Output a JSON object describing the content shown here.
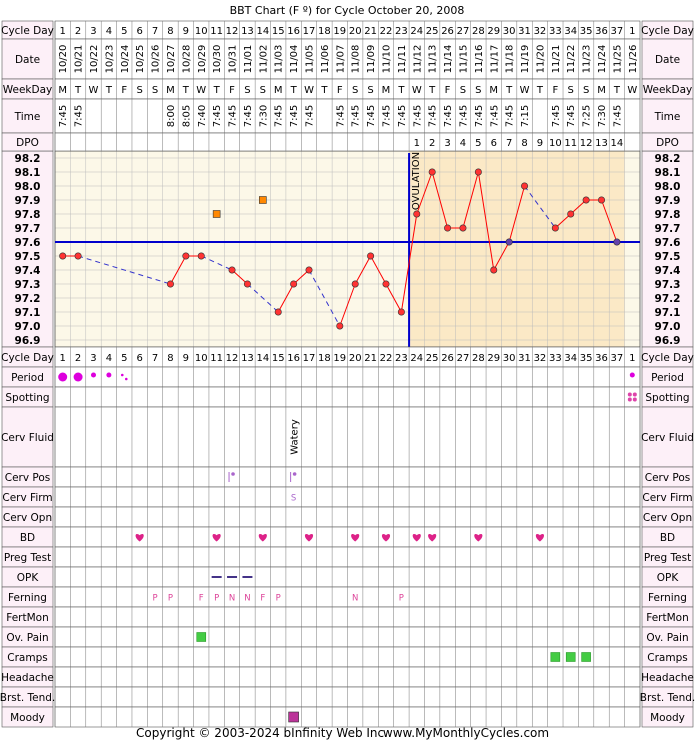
{
  "title": "BBT Chart (F º) for Cycle October 20, 2008",
  "footer": {
    "copyright": "Copyright © 2003-2024 bInfinity Web Inc.",
    "site": "www.MyMonthlyCycles.com"
  },
  "row_labels": {
    "cycle_day": "Cycle Day",
    "date": "Date",
    "weekday": "WeekDay",
    "time": "Time",
    "dpo": "DPO"
  },
  "ovulation_label": "OVULATION",
  "colors": {
    "pre_ovulation_bg": "#fcf8e8",
    "post_ovulation_bg": "#fbe9c6",
    "temp_line": "#ff0000",
    "temp_point": "#ff3333",
    "gap_line": "#3333cc",
    "coverline": "#0000cc",
    "ovulation_line": "#0000cc",
    "period": "#dd00dd",
    "spotting": "#dd44aa",
    "heart": "#dd2288",
    "opk": "#443388",
    "ferning": "#dd4499",
    "pain": "#44cc44",
    "cramps": "#44cc44",
    "moody": "#bb3399",
    "cervpos": "#aa66cc",
    "cervfirm": "#aa66cc",
    "special_point": "#ff8800",
    "label_bg": "#fdf0f8"
  },
  "days": [
    {
      "cd": "1",
      "date": "10/20",
      "wd": "M",
      "time": "7:45",
      "dpo": ""
    },
    {
      "cd": "2",
      "date": "10/21",
      "wd": "T",
      "time": "7:45",
      "dpo": ""
    },
    {
      "cd": "3",
      "date": "10/22",
      "wd": "W",
      "time": "",
      "dpo": ""
    },
    {
      "cd": "4",
      "date": "10/23",
      "wd": "T",
      "time": "",
      "dpo": ""
    },
    {
      "cd": "5",
      "date": "10/24",
      "wd": "F",
      "time": "",
      "dpo": ""
    },
    {
      "cd": "6",
      "date": "10/25",
      "wd": "S",
      "time": "",
      "dpo": ""
    },
    {
      "cd": "7",
      "date": "10/26",
      "wd": "S",
      "time": "",
      "dpo": ""
    },
    {
      "cd": "8",
      "date": "10/27",
      "wd": "M",
      "time": "8:00",
      "dpo": ""
    },
    {
      "cd": "9",
      "date": "10/28",
      "wd": "T",
      "time": "8:05",
      "dpo": ""
    },
    {
      "cd": "10",
      "date": "10/29",
      "wd": "W",
      "time": "7:40",
      "dpo": ""
    },
    {
      "cd": "11",
      "date": "10/30",
      "wd": "T",
      "time": "7:45",
      "dpo": ""
    },
    {
      "cd": "12",
      "date": "10/31",
      "wd": "F",
      "time": "7:45",
      "dpo": ""
    },
    {
      "cd": "13",
      "date": "11/01",
      "wd": "S",
      "time": "7:45",
      "dpo": ""
    },
    {
      "cd": "14",
      "date": "11/02",
      "wd": "S",
      "time": "7:30",
      "dpo": ""
    },
    {
      "cd": "15",
      "date": "11/03",
      "wd": "M",
      "time": "7:45",
      "dpo": ""
    },
    {
      "cd": "16",
      "date": "11/04",
      "wd": "T",
      "time": "7:45",
      "dpo": ""
    },
    {
      "cd": "17",
      "date": "11/05",
      "wd": "W",
      "time": "7:45",
      "dpo": ""
    },
    {
      "cd": "18",
      "date": "11/06",
      "wd": "T",
      "time": "",
      "dpo": ""
    },
    {
      "cd": "19",
      "date": "11/07",
      "wd": "F",
      "time": "7:45",
      "dpo": ""
    },
    {
      "cd": "20",
      "date": "11/08",
      "wd": "S",
      "time": "7:45",
      "dpo": ""
    },
    {
      "cd": "21",
      "date": "11/09",
      "wd": "S",
      "time": "7:45",
      "dpo": ""
    },
    {
      "cd": "22",
      "date": "11/10",
      "wd": "M",
      "time": "7:45",
      "dpo": ""
    },
    {
      "cd": "23",
      "date": "11/11",
      "wd": "T",
      "time": "7:45",
      "dpo": ""
    },
    {
      "cd": "24",
      "date": "11/12",
      "wd": "W",
      "time": "7:45",
      "dpo": "1"
    },
    {
      "cd": "25",
      "date": "11/13",
      "wd": "T",
      "time": "7:45",
      "dpo": "2"
    },
    {
      "cd": "26",
      "date": "11/14",
      "wd": "F",
      "time": "7:45",
      "dpo": "3"
    },
    {
      "cd": "27",
      "date": "11/15",
      "wd": "S",
      "time": "7:45",
      "dpo": "4"
    },
    {
      "cd": "28",
      "date": "11/16",
      "wd": "S",
      "time": "7:45",
      "dpo": "5"
    },
    {
      "cd": "29",
      "date": "11/17",
      "wd": "M",
      "time": "7:45",
      "dpo": "6"
    },
    {
      "cd": "30",
      "date": "11/18",
      "wd": "T",
      "time": "7:45",
      "dpo": "7"
    },
    {
      "cd": "31",
      "date": "11/19",
      "wd": "W",
      "time": "7:15",
      "dpo": "8"
    },
    {
      "cd": "32",
      "date": "11/20",
      "wd": "T",
      "time": "",
      "dpo": "9"
    },
    {
      "cd": "33",
      "date": "11/21",
      "wd": "F",
      "time": "7:45",
      "dpo": "10"
    },
    {
      "cd": "34",
      "date": "11/22",
      "wd": "S",
      "time": "7:45",
      "dpo": "11"
    },
    {
      "cd": "35",
      "date": "11/23",
      "wd": "S",
      "time": "7:25",
      "dpo": "12"
    },
    {
      "cd": "36",
      "date": "11/24",
      "wd": "M",
      "time": "7:30",
      "dpo": "13"
    },
    {
      "cd": "37",
      "date": "11/25",
      "wd": "T",
      "time": "7:45",
      "dpo": "14"
    },
    {
      "cd": "1",
      "date": "11/26",
      "wd": "W",
      "time": "",
      "dpo": ""
    }
  ],
  "chart_data": {
    "type": "line",
    "title": "BBT Chart (F º) for Cycle October 20, 2008",
    "xlabel": "Cycle Day",
    "ylabel": "",
    "x": [
      1,
      2,
      3,
      4,
      5,
      6,
      7,
      8,
      9,
      10,
      11,
      12,
      13,
      14,
      15,
      16,
      17,
      18,
      19,
      20,
      21,
      22,
      23,
      24,
      25,
      26,
      27,
      28,
      29,
      30,
      31,
      32,
      33,
      34,
      35,
      36,
      37
    ],
    "ylim": [
      96.9,
      98.2
    ],
    "yticks": [
      "98.2",
      "98.1",
      "98.0",
      "97.9",
      "97.8",
      "97.7",
      "97.6",
      "97.5",
      "97.4",
      "97.3",
      "97.2",
      "97.1",
      "97.0",
      "96.9"
    ],
    "series": [
      {
        "values": [
          97.5,
          97.5,
          null,
          null,
          null,
          null,
          null,
          97.3,
          97.5,
          97.5,
          null,
          97.4,
          97.3,
          null,
          97.1,
          97.3,
          97.4,
          null,
          97.0,
          97.3,
          97.5,
          97.3,
          97.1,
          97.8,
          98.1,
          97.7,
          97.7,
          98.1,
          97.4,
          97.6,
          98.0,
          null,
          97.7,
          97.8,
          97.9,
          97.9,
          97.6
        ]
      }
    ],
    "discarded_points": [
      {
        "day": 11,
        "value": 97.8
      },
      {
        "day": 14,
        "value": 97.9
      }
    ],
    "coverline": 97.6,
    "ovulation_day": 23,
    "grid": true,
    "legend": "none"
  },
  "observations": [
    {
      "key": "cycle_day2",
      "label": "Cycle Day",
      "kind": "cd"
    },
    {
      "key": "period",
      "label": "Period",
      "kind": "period",
      "items": [
        {
          "day": 1,
          "level": "heavy"
        },
        {
          "day": 2,
          "level": "heavy"
        },
        {
          "day": 3,
          "level": "light"
        },
        {
          "day": 4,
          "level": "light"
        },
        {
          "day": 5,
          "level": "spotting"
        },
        {
          "day": 38,
          "level": "light"
        }
      ]
    },
    {
      "key": "spotting",
      "label": "Spotting",
      "kind": "spotting",
      "items": [
        {
          "day": 38
        }
      ]
    },
    {
      "key": "cerv_fluid",
      "label": "Cerv Fluid",
      "kind": "text-vertical",
      "items": [
        {
          "day": 16,
          "text": "Watery"
        }
      ]
    },
    {
      "key": "cerv_pos",
      "label": "Cerv Pos",
      "kind": "cervpos",
      "items": [
        {
          "day": 12
        },
        {
          "day": 16
        }
      ]
    },
    {
      "key": "cerv_firm",
      "label": "Cerv Firm",
      "kind": "text",
      "items": [
        {
          "day": 16,
          "text": "S"
        }
      ]
    },
    {
      "key": "cerv_opn",
      "label": "Cerv Opn",
      "kind": "none",
      "items": []
    },
    {
      "key": "bd",
      "label": "BD",
      "kind": "heart",
      "items": [
        {
          "day": 6
        },
        {
          "day": 11
        },
        {
          "day": 14
        },
        {
          "day": 17
        },
        {
          "day": 20
        },
        {
          "day": 22
        },
        {
          "day": 24
        },
        {
          "day": 25
        },
        {
          "day": 28
        },
        {
          "day": 32
        }
      ]
    },
    {
      "key": "preg_test",
      "label": "Preg Test",
      "kind": "none",
      "items": []
    },
    {
      "key": "opk",
      "label": "OPK",
      "kind": "dash",
      "items": [
        {
          "day": 11
        },
        {
          "day": 12
        },
        {
          "day": 13
        }
      ]
    },
    {
      "key": "ferning",
      "label": "Ferning",
      "kind": "text",
      "items": [
        {
          "day": 7,
          "text": "P"
        },
        {
          "day": 8,
          "text": "P"
        },
        {
          "day": 10,
          "text": "F"
        },
        {
          "day": 11,
          "text": "P"
        },
        {
          "day": 12,
          "text": "N"
        },
        {
          "day": 13,
          "text": "N"
        },
        {
          "day": 14,
          "text": "F"
        },
        {
          "day": 15,
          "text": "P"
        },
        {
          "day": 20,
          "text": "N"
        },
        {
          "day": 23,
          "text": "P"
        }
      ]
    },
    {
      "key": "fertmon",
      "label": "FertMon",
      "kind": "none",
      "items": []
    },
    {
      "key": "ov_pain",
      "label": "Ov. Pain",
      "kind": "square",
      "items": [
        {
          "day": 10
        }
      ]
    },
    {
      "key": "cramps",
      "label": "Cramps",
      "kind": "square",
      "items": [
        {
          "day": 33
        },
        {
          "day": 34
        },
        {
          "day": 35
        }
      ]
    },
    {
      "key": "headache",
      "label": "Headache",
      "kind": "none",
      "items": []
    },
    {
      "key": "brst_tend",
      "label": "Brst. Tend.",
      "kind": "none",
      "items": []
    },
    {
      "key": "moody",
      "label": "Moody",
      "kind": "moody",
      "items": [
        {
          "day": 16
        }
      ]
    }
  ]
}
